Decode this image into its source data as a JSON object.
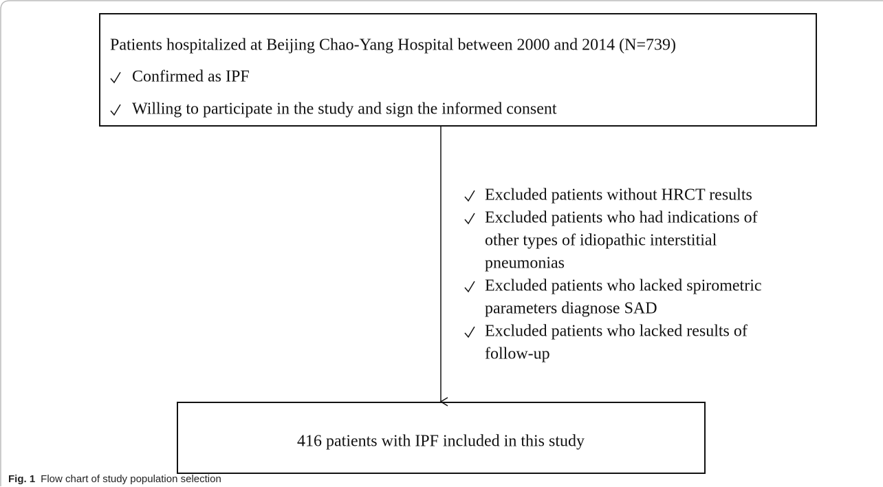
{
  "top_box": {
    "title": "Patients hospitalized at Beijing Chao-Yang Hospital between 2000 and 2014 (N=739)",
    "criteria": [
      "Confirmed as IPF",
      "Willing to participate in the study and sign the informed consent"
    ]
  },
  "exclusions": [
    {
      "lines": [
        "Excluded patients without HRCT results"
      ]
    },
    {
      "lines": [
        "Excluded patients who had indications of",
        "other types of idiopathic interstitial",
        "pneumonias"
      ]
    },
    {
      "lines": [
        "Excluded patients who lacked spirometric",
        "parameters diagnose SAD"
      ]
    },
    {
      "lines": [
        "Excluded patients who lacked results of",
        "follow-up"
      ]
    }
  ],
  "bottom_box": {
    "text": "416 patients with IPF included in this study"
  },
  "caption": {
    "label": "Fig. 1",
    "text": "Flow chart of study population selection"
  }
}
